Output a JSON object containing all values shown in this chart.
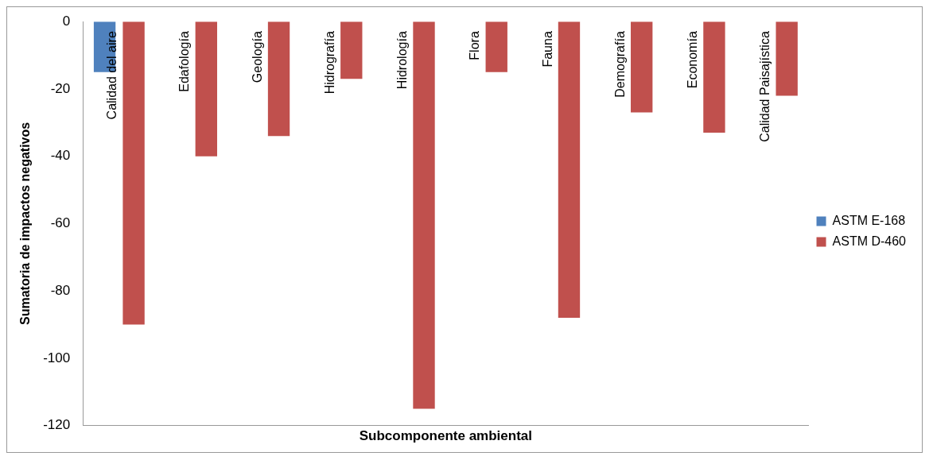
{
  "chart_data": {
    "type": "bar",
    "xlabel": "Subcomponente ambiental",
    "ylabel": "Sumatoria de impactos negativos",
    "categories": [
      "Calidad del aire",
      "Edafología",
      "Geología",
      "Hidrografía",
      "Hidrología",
      "Flora",
      "Fauna",
      "Demografía",
      "Economía",
      "Calidad Paisajística"
    ],
    "series": [
      {
        "name": "ASTM E-168",
        "color": "#4f81bd",
        "values": [
          -15,
          0,
          0,
          0,
          0,
          0,
          0,
          0,
          0,
          0
        ]
      },
      {
        "name": "ASTM D-460",
        "color": "#c0504d",
        "values": [
          -90,
          -40,
          -34,
          -17,
          -115,
          -15,
          -88,
          -27,
          -33,
          -22
        ]
      }
    ],
    "ylim": [
      -120,
      0
    ],
    "yticks": [
      -120,
      -100,
      -80,
      -60,
      -40,
      -20,
      0
    ],
    "grid": false,
    "legend": "right"
  }
}
